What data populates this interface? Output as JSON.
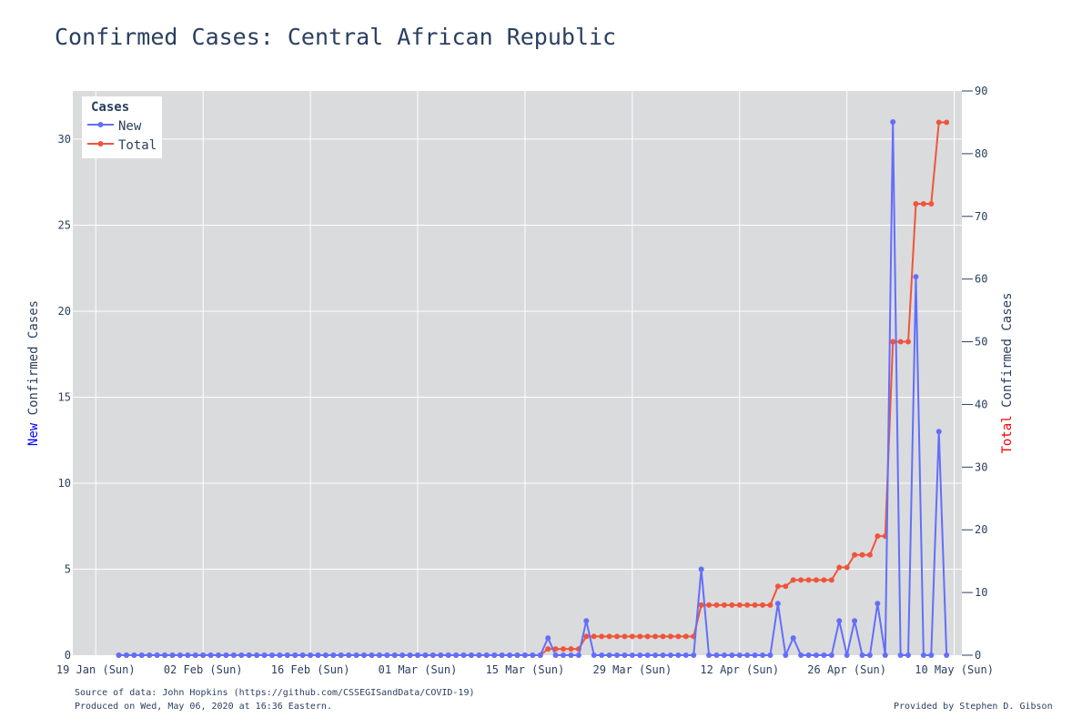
{
  "title": "Confirmed Cases: Central African Republic",
  "footer": {
    "source": "Source of data: John Hopkins (https://github.com/CSSEGISandData/COVID-19)",
    "produced": "Produced on Wed, May 06, 2020 at 16:36 Eastern.",
    "credit": "Provided by Stephen D. Gibson"
  },
  "colors": {
    "new": "#636efa",
    "total": "#ef553b",
    "plot_bg": "#dadbdd",
    "grid": "#ffffff",
    "text": "#2a3f5f",
    "new_word": "#0000ff",
    "total_word": "#ff0000"
  },
  "chart_data": {
    "type": "line",
    "x_start": "2020-01-22",
    "x_ticks": [
      "19 Jan (Sun)",
      "02 Feb (Sun)",
      "16 Feb (Sun)",
      "01 Mar (Sun)",
      "15 Mar (Sun)",
      "29 Mar (Sun)",
      "12 Apr (Sun)",
      "26 Apr (Sun)",
      "10 May (Sun)"
    ],
    "xlim": [
      "2020-01-16",
      "2020-05-11"
    ],
    "y_left": {
      "label_prefix": "New",
      "label_rest": " Confirmed Cases",
      "ticks": [
        0,
        5,
        10,
        15,
        20,
        25,
        30
      ],
      "ylim": [
        0,
        32.8
      ]
    },
    "y_right": {
      "label_prefix": "Total",
      "label_rest": " Confirmed Cases",
      "ticks": [
        0,
        10,
        20,
        30,
        40,
        50,
        60,
        70,
        80,
        90
      ],
      "ylim": [
        0,
        90
      ]
    },
    "legend": {
      "title": "Cases",
      "position": "top-left"
    },
    "grid": true,
    "series": [
      {
        "name": "New",
        "axis": "left",
        "values": [
          0,
          0,
          0,
          0,
          0,
          0,
          0,
          0,
          0,
          0,
          0,
          0,
          0,
          0,
          0,
          0,
          0,
          0,
          0,
          0,
          0,
          0,
          0,
          0,
          0,
          0,
          0,
          0,
          0,
          0,
          0,
          0,
          0,
          0,
          0,
          0,
          0,
          0,
          0,
          0,
          0,
          0,
          0,
          0,
          0,
          0,
          0,
          0,
          0,
          0,
          0,
          0,
          0,
          0,
          0,
          0,
          1,
          0,
          0,
          0,
          0,
          2,
          0,
          0,
          0,
          0,
          0,
          0,
          0,
          0,
          0,
          0,
          0,
          0,
          0,
          0,
          5,
          0,
          0,
          0,
          0,
          0,
          0,
          0,
          0,
          0,
          3,
          0,
          1,
          0,
          0,
          0,
          0,
          0,
          2,
          0,
          2,
          0,
          0,
          3,
          0,
          31,
          0,
          0,
          22,
          0,
          0,
          13,
          0
        ]
      },
      {
        "name": "Total",
        "axis": "right",
        "values": [
          0,
          0,
          0,
          0,
          0,
          0,
          0,
          0,
          0,
          0,
          0,
          0,
          0,
          0,
          0,
          0,
          0,
          0,
          0,
          0,
          0,
          0,
          0,
          0,
          0,
          0,
          0,
          0,
          0,
          0,
          0,
          0,
          0,
          0,
          0,
          0,
          0,
          0,
          0,
          0,
          0,
          0,
          0,
          0,
          0,
          0,
          0,
          0,
          0,
          0,
          0,
          0,
          0,
          0,
          0,
          0,
          1,
          1,
          1,
          1,
          1,
          3,
          3,
          3,
          3,
          3,
          3,
          3,
          3,
          3,
          3,
          3,
          3,
          3,
          3,
          3,
          8,
          8,
          8,
          8,
          8,
          8,
          8,
          8,
          8,
          8,
          11,
          11,
          12,
          12,
          12,
          12,
          12,
          12,
          14,
          14,
          16,
          16,
          16,
          19,
          19,
          50,
          50,
          50,
          72,
          72,
          72,
          85,
          85
        ]
      }
    ]
  }
}
